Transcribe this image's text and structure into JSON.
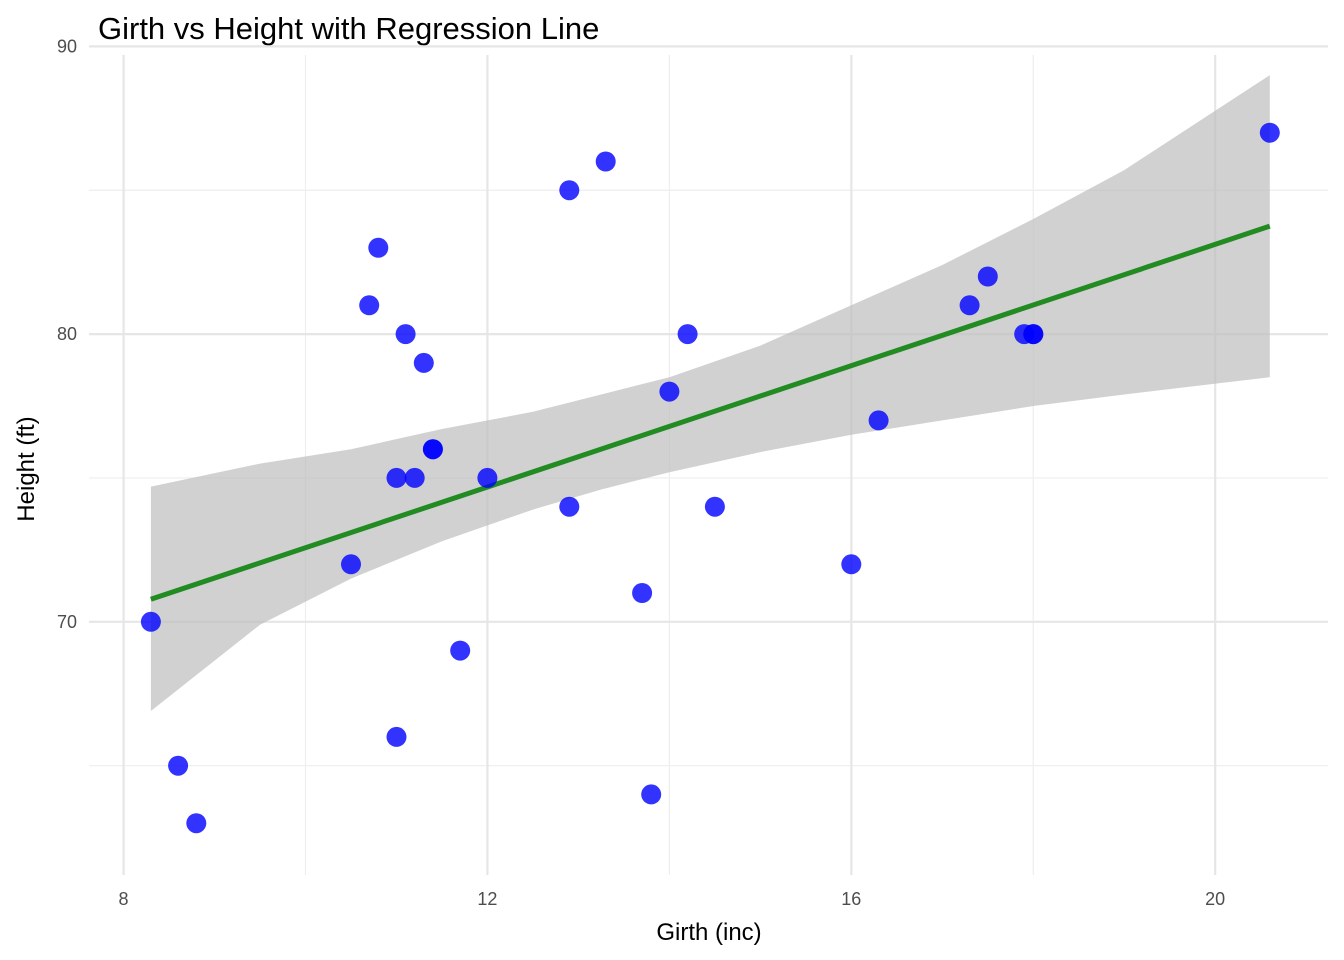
{
  "chart_data": {
    "type": "scatter",
    "title": "Girth vs Height with Regression Line",
    "xlabel": "Girth (inc)",
    "ylabel": "Height (ft)",
    "xlim": [
      7.62,
      21.24
    ],
    "ylim": [
      61.2,
      89.7
    ],
    "x_ticks": [
      8,
      12,
      16,
      20
    ],
    "x_minor_ticks": [
      10,
      14,
      18
    ],
    "y_ticks": [
      70,
      80,
      90
    ],
    "y_minor_ticks": [
      65,
      75,
      85
    ],
    "grid": true,
    "legend": "none",
    "colors": {
      "points": "#0000ff",
      "regression_line": "#228b22",
      "confidence_band": "#bdbdbd",
      "grid": "#e6e6e6"
    },
    "series": [
      {
        "x": [
          8.3,
          8.6,
          8.8,
          10.5,
          10.7,
          10.8,
          11.0,
          11.0,
          11.1,
          11.2,
          11.3,
          11.4,
          11.4,
          11.7,
          12.0,
          12.9,
          12.9,
          13.3,
          13.7,
          13.8,
          14.0,
          14.2,
          14.5,
          16.0,
          16.3,
          17.3,
          17.5,
          17.9,
          18.0,
          18.0,
          20.6
        ],
        "y": [
          70,
          65,
          63,
          72,
          81,
          83,
          66,
          75,
          80,
          75,
          79,
          76,
          76,
          69,
          75,
          74,
          85,
          86,
          71,
          64,
          78,
          80,
          74,
          72,
          77,
          81,
          82,
          80,
          80,
          80,
          87
        ]
      }
    ],
    "regression": {
      "intercept": 62.031,
      "slope": 1.0544,
      "x_range": [
        8.3,
        20.6
      ],
      "confidence_band": {
        "x": [
          8.3,
          9.5,
          10.5,
          11.5,
          12.5,
          13.25,
          14.0,
          15.0,
          16.0,
          17.0,
          18.0,
          19.0,
          20.6
        ],
        "lower": [
          66.9,
          69.9,
          71.5,
          72.8,
          73.9,
          74.6,
          75.2,
          75.9,
          76.5,
          77.0,
          77.5,
          77.9,
          78.5
        ],
        "upper": [
          74.7,
          75.5,
          76.0,
          76.7,
          77.3,
          77.9,
          78.5,
          79.6,
          81.0,
          82.4,
          84.0,
          85.7,
          89.0
        ]
      }
    }
  }
}
